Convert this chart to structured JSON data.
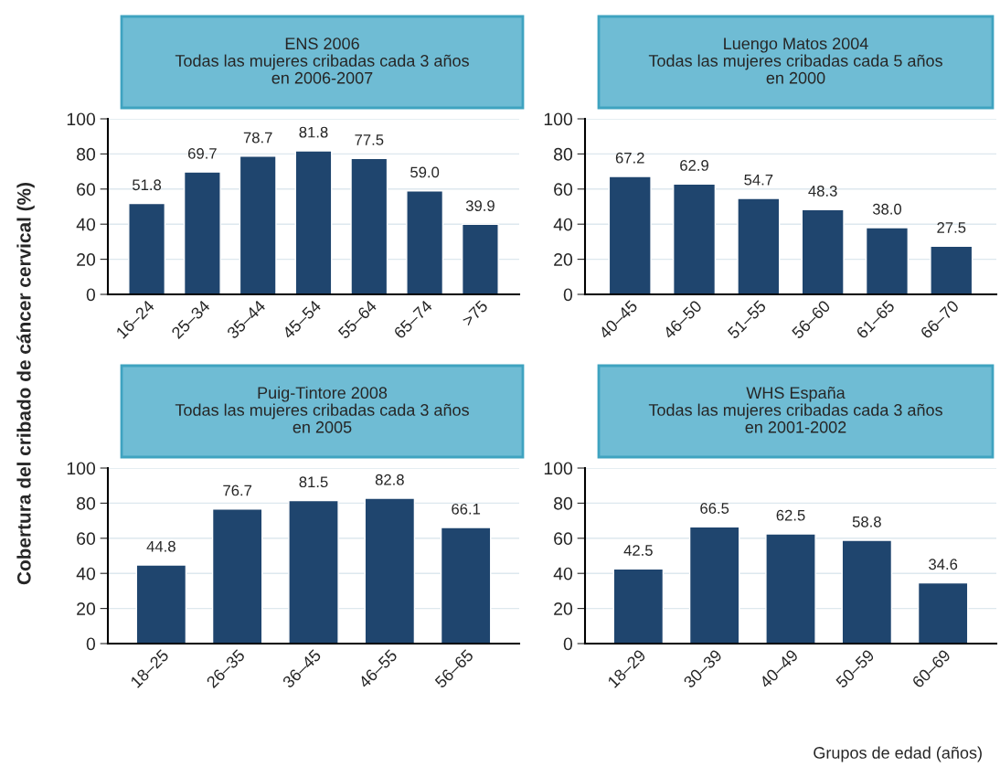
{
  "chart_data": [
    {
      "type": "bar",
      "title": "ENS 2006\nTodas las mujeres cribadas cada 3 años\nen 2006-2007",
      "ylabel": "Cobertura del cribado de cáncer cervical (%)",
      "categories": [
        "16–24",
        "25–34",
        "35–44",
        "45–54",
        "55–64",
        "65–74",
        ">75"
      ],
      "values": [
        51.8,
        69.7,
        78.7,
        81.8,
        77.5,
        59.0,
        39.9
      ],
      "value_labels": [
        "51.8",
        "69.7",
        "78.7",
        "81.8",
        "77.5",
        "59.0",
        "39.9"
      ],
      "color": "#1f456e",
      "ylim": [
        0,
        100
      ],
      "yticks": [
        0,
        20,
        40,
        60,
        80,
        100
      ],
      "grid": "y"
    },
    {
      "type": "bar",
      "title": "Luengo Matos 2004\nTodas las mujeres cribadas cada 5 años\nen 2000",
      "categories": [
        "40–45",
        "46–50",
        "51–55",
        "56–60",
        "61–65",
        "66–70"
      ],
      "values": [
        67.2,
        62.9,
        54.7,
        48.3,
        38.0,
        27.5
      ],
      "value_labels": [
        "67.2",
        "62.9",
        "54.7",
        "48.3",
        "38.0",
        "27.5"
      ],
      "color": "#1f456e",
      "ylim": [
        0,
        100
      ],
      "yticks": [
        0,
        20,
        40,
        60,
        80,
        100
      ],
      "grid": "y"
    },
    {
      "type": "bar",
      "title": "Puig-Tintore 2008\nTodas las mujeres cribadas cada 3 años\nen 2005",
      "categories": [
        "18–25",
        "26–35",
        "36–45",
        "46–55",
        "56–65"
      ],
      "values": [
        44.8,
        76.7,
        81.5,
        82.8,
        66.1
      ],
      "value_labels": [
        "44.8",
        "76.7",
        "81.5",
        "82.8",
        "66.1"
      ],
      "color": "#1f456e",
      "ylim": [
        0,
        100
      ],
      "yticks": [
        0,
        20,
        40,
        60,
        80,
        100
      ],
      "grid": "y"
    },
    {
      "type": "bar",
      "title": "WHS España\nTodas las mujeres cribadas cada 3 años\nen 2001-2002",
      "xlabel": "Grupos de edad (años)",
      "categories": [
        "18–29",
        "30–39",
        "40–49",
        "50–59",
        "60–69"
      ],
      "values": [
        42.5,
        66.5,
        62.5,
        58.8,
        34.6
      ],
      "value_labels": [
        "42.5",
        "66.5",
        "62.5",
        "58.8",
        "34.6"
      ],
      "color": "#1f456e",
      "ylim": [
        0,
        100
      ],
      "yticks": [
        0,
        20,
        40,
        60,
        80,
        100
      ],
      "grid": "y"
    }
  ]
}
